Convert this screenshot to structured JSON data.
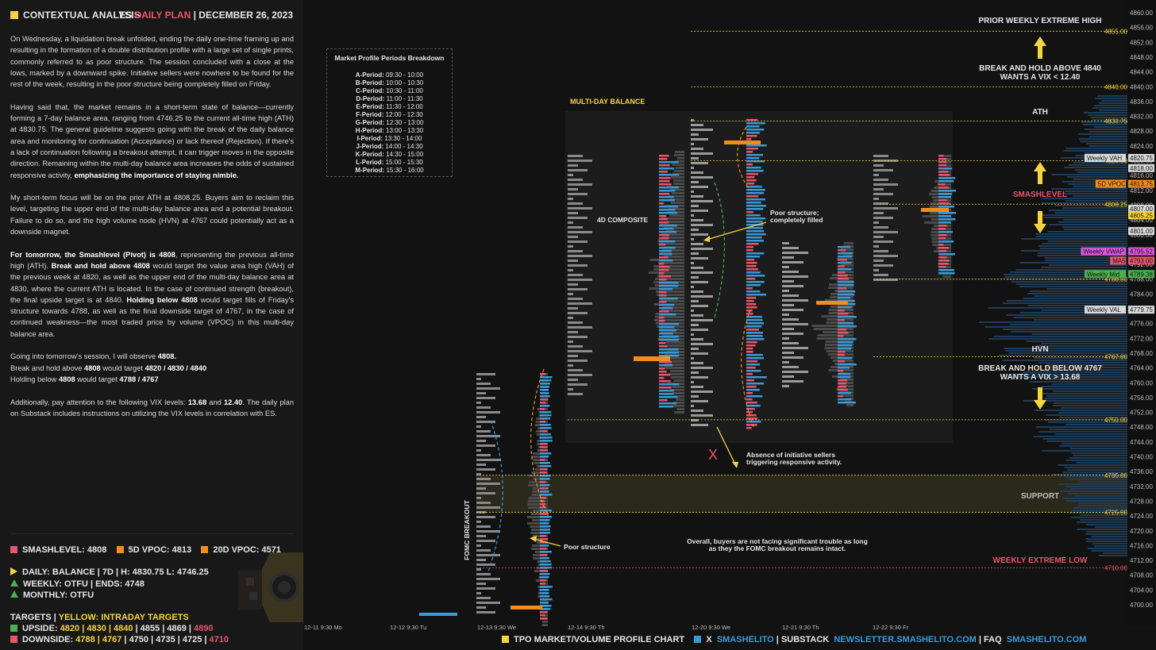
{
  "header": {
    "title": "CONTEXTUAL ANALYSIS",
    "plan_prefix": "ES",
    "plan_label": "DAILY PLAN",
    "date": "DECEMBER 26, 2023"
  },
  "article": {
    "p1": "On Wednesday, a liquidation break unfolded, ending the daily one-time framing up and resulting in the formation of a double distribution profile with a large set of single prints, commonly referred to as poor structure. The session concluded with a close at the lows, marked by a downward spike. Initiative sellers were nowhere to be found for the rest of the week, resulting in the poor structure being completely filled on Friday.",
    "p2a": "Having said that, the market remains in a short-term state of balance—currently forming a 7-day balance area, ranging from 4746.25 to the current all-time high (ATH) at 4830.75. The general guideline suggests going with the break of the daily balance area and monitoring for continuation (Acceptance) or lack thereof (Rejection). If there's a lack of continuation following a breakout attempt, it can trigger moves in the opposite direction. Remaining within the multi-day balance area increases the odds of sustained responsive activity, ",
    "p2b": "emphasizing the importance of staying nimble.",
    "p3": "My short-term focus will be on the prior ATH at 4808.25. Buyers aim to reclaim this level, targeting the upper end of the multi-day balance area and a potential breakout. Failure to do so, and the high volume node (HVN) at 4767 could potentially act as a downside magnet.",
    "p4a": "For tomorrow, the Smashlevel (Pivot) is 4808",
    "p4b": ", representing the previous all-time high (ATH). ",
    "p4c": "Break and hold above 4808",
    "p4d": " would target the value area high (VAH) of the previous week at 4820, as well as the upper end of the multi-day balance area at 4830, where the current ATH is located. In the case of continued strength (breakout), the final upside target is at 4840. ",
    "p4e": "Holding below 4808",
    "p4f": " would target fills of Friday's structure towards 4788, as well as the final downside target of 4767, in the case of continued weakness—the most traded price by volume (VPOC) in this multi-day balance area.",
    "p5a": "Going into tomorrow's session, I will observe ",
    "p5b": "4808.",
    "p5c": "Break and hold above ",
    "p5d": "4808",
    "p5e": " would target ",
    "p5f": "4820 / 4830 / 4840",
    "p5g": "Holding below ",
    "p5h": "4808",
    "p5i": " would target ",
    "p5j": "4788 / 4767",
    "p6a": "Additionally, pay attention to the following VIX levels: ",
    "p6b": "13.68",
    "p6c": " and ",
    "p6d": "12.40",
    "p6e": ". The daily plan on Substack includes instructions on utilizing the VIX levels in correlation with ES."
  },
  "stats": {
    "smashlevel": "SMASHLEVEL: 4808",
    "vpoc5": "5D VPOC: 4813",
    "vpoc20": "20D VPOC: 4571",
    "daily": "DAILY: BALANCE | 7D | H: 4830.75 L: 4746.25",
    "weekly": "WEEKLY: OTFU | ENDS: 4748",
    "monthly": "MONTHLY: OTFU",
    "targets_label": "TARGETS | ",
    "targets_yellow": "YELLOW: INTRADAY TARGETS",
    "upside_label": "UPSIDE: ",
    "upside_y": "4820 | 4830 | 4840",
    "upside_w": " | 4855 | 4869 | ",
    "upside_r": "4890",
    "downside_label": "DOWNSIDE: ",
    "downside_y": "4788 | 4767",
    "downside_w": " | 4750 | 4735 | 4725 | ",
    "downside_r": "4710"
  },
  "colors": {
    "yellow": "#f5d442",
    "red": "#e8556c",
    "orange": "#f28c1e",
    "blue": "#3a9ad9",
    "green": "#4caf50"
  },
  "legend": {
    "title": "Market Profile Periods Breakdown",
    "periods": [
      {
        "p": "A-Period:",
        "t": "09:30 - 10:00"
      },
      {
        "p": "B-Period:",
        "t": "10:00 - 10:30"
      },
      {
        "p": "C-Period:",
        "t": "10:30 - 11:00"
      },
      {
        "p": "D-Period:",
        "t": "11:00 - 11:30"
      },
      {
        "p": "E-Period:",
        "t": "11:30 - 12:00"
      },
      {
        "p": "F-Period:",
        "t": "12:00 - 12:30"
      },
      {
        "p": "G-Period:",
        "t": "12:30 - 13:00"
      },
      {
        "p": "H-Period:",
        "t": "13:00 - 13:30"
      },
      {
        "p": "I-Period:",
        "t": "13:30 - 14:00"
      },
      {
        "p": "J-Period:",
        "t": "14:00 - 14:30"
      },
      {
        "p": "K-Period:",
        "t": "14:30 - 15:00"
      },
      {
        "p": "L-Period:",
        "t": "15:00 - 15:30"
      },
      {
        "p": "M-Period:",
        "t": "15:30 - 16:00"
      }
    ]
  },
  "annotations": {
    "prior_weekly_extreme": "PRIOR WEEKLY EXTREME HIGH",
    "break_above": "BREAK AND HOLD ABOVE 4840",
    "vix_below": "WANTS A VIX < 12.40",
    "ath": "ATH",
    "smashlevel": "SMASHLEVEL",
    "hvn": "HVN",
    "break_below": "BREAK AND HOLD BELOW 4767",
    "vix_above": "WANTS A VIX > 13.68",
    "support": "SUPPORT",
    "weekly_extreme_low": "WEEKLY EXTREME LOW",
    "multi_day_balance": "MULTI-DAY BALANCE",
    "composite": "4D COMPOSITE",
    "poor_structure_filled_1": "Poor structure;",
    "poor_structure_filled_2": "completely filled",
    "absence_1": "Absence of initiative sellers",
    "absence_2": "triggering responsive activity.",
    "x_mark": "X",
    "poor_structure": "Poor structure",
    "overall_1": "Overall, buyers are not facing significant trouble as long",
    "overall_2": "as they the FOMC breakout remains intact.",
    "fomc": "FOMC BREAKOUT"
  },
  "footer": {
    "chart": "TPO MARKET/VOLUME PROFILE CHART",
    "x": "X",
    "x_handle": "SMASHELITO",
    "substack": "SUBSTACK",
    "substack_url": "NEWSLETTER.SMASHELITO.COM",
    "faq": "FAQ",
    "faq_url": "SMASHELITO.COM"
  },
  "chart_data": {
    "type": "table",
    "title": "",
    "x_ticks": [
      "12-11  9:30 Mo",
      "12-12  9:30 Tu",
      "12-13  9:30 We",
      "12-14  9:30 Th",
      "12-20  9:30 We",
      "12-21  9:30 Th",
      "12-22  9:30 Fr"
    ],
    "y_ticks": [
      4860,
      4856,
      4852,
      4848,
      4844,
      4840,
      4836,
      4832,
      4828,
      4824,
      4820,
      4816,
      4812,
      4808,
      4804,
      4800,
      4796,
      4792,
      4788,
      4784,
      4780,
      4776,
      4772,
      4768,
      4764,
      4760,
      4756,
      4752,
      4748,
      4744,
      4740,
      4736,
      4732,
      4728,
      4724,
      4720,
      4716,
      4712,
      4708,
      4704,
      4700
    ],
    "y_tick_labels": [
      "4860.00",
      "4856.00",
      "4852.00",
      "4848.00",
      "4844.00",
      "4840.00",
      "4836.00",
      "4832.00",
      "4828.00",
      "4824.00",
      "4820.00",
      "4816.00",
      "4812.00",
      "4808.00",
      "4804.00",
      "4800.00",
      "4796.00",
      "4792.00",
      "4788.00",
      "4784.00",
      "4780.00",
      "4776.00",
      "4772.00",
      "4768.00",
      "4764.00",
      "4760.00",
      "4756.00",
      "4752.00",
      "4748.00",
      "4744.00",
      "4740.00",
      "4736.00",
      "4732.00",
      "4728.00",
      "4724.00",
      "4720.00",
      "4716.00",
      "4712.00",
      "4708.00",
      "4704.00",
      "4700.00"
    ],
    "ylim": [
      4698,
      4862
    ],
    "levels": [
      {
        "value": 4855,
        "label": "4855.00"
      },
      {
        "value": 4840,
        "label": "4840.00"
      },
      {
        "value": 4830.75,
        "label": "4830.75"
      },
      {
        "value": 4820,
        "label": "4820.00"
      },
      {
        "value": 4808.25,
        "label": "4808.25"
      },
      {
        "value": 4788,
        "label": "4788.00"
      },
      {
        "value": 4767,
        "label": "4767.00"
      },
      {
        "value": 4750,
        "label": "4750.00"
      },
      {
        "value": 4735,
        "label": "4735.00"
      },
      {
        "value": 4725,
        "label": "4725.00"
      },
      {
        "value": 4710,
        "label": "4710.00"
      }
    ],
    "tags": [
      {
        "name": "Weekly VAH",
        "value": "4820.75",
        "y": 4820.75,
        "color": "#d9d9d9"
      },
      {
        "name": "",
        "value": "4818.00",
        "y": 4818,
        "color": "#d9d9d9"
      },
      {
        "name": "5D VPOC",
        "value": "4813.75",
        "y": 4813.75,
        "color": "#f28c1e"
      },
      {
        "name": "",
        "value": "4807.00",
        "y": 4807,
        "color": "#d9d9d9"
      },
      {
        "name": "",
        "value": "4805.25",
        "y": 4805.25,
        "color": "#f5d442"
      },
      {
        "name": "",
        "value": "4801.00",
        "y": 4801,
        "color": "#d9d9d9"
      },
      {
        "name": "Weekly VWAP",
        "value": "4795.52",
        "y": 4795.52,
        "color": "#d957d9"
      },
      {
        "name": "MA5",
        "value": "4793.00",
        "y": 4793,
        "color": "#e8556c"
      },
      {
        "name": "Weekly Mid",
        "value": "4789.38",
        "y": 4789.38,
        "color": "#4caf50"
      },
      {
        "name": "Weekly VAL",
        "value": "4779.75",
        "y": 4779.75,
        "color": "#d9d9d9"
      }
    ],
    "support_zone": [
      4725,
      4735
    ]
  }
}
